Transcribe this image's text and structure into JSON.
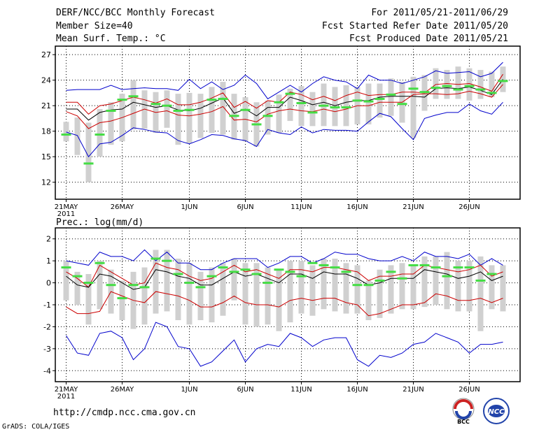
{
  "header": {
    "title": "DERF/NCC/BCC Monthly Forecast",
    "member_size": "Member Size=40",
    "variable": "Mean Surf. Temp.: °C",
    "forecast_range": "For 2011/05/21-2011/06/29",
    "fcst_started": "Fcst Started Refer Date 2011/05/20",
    "fcst_produced": "Fcst Produced Date 2011/05/21"
  },
  "footer": {
    "url": "http://cmdp.ncc.cma.gov.cn",
    "grads_credit": "GrADS: COLA/IGES",
    "logo_bcc": "BCC",
    "logo_ncc": "NCC"
  },
  "colors": {
    "max_min": "#0000cc",
    "spread": "#cc0000",
    "ensemble_mean": "#000000",
    "box": "#d0d0d0",
    "obs_marker": "#44dd44"
  },
  "chart_data": [
    {
      "type": "line",
      "id": "temperature",
      "title": "",
      "ylabel": "",
      "ylim": [
        10,
        28
      ],
      "yticks": [
        12,
        15,
        18,
        21,
        24,
        27
      ],
      "x_tick_labels": [
        "21MAY",
        "26MAY",
        "1JUN",
        "6JUN",
        "11JUN",
        "16JUN",
        "21JUN",
        "26JUN"
      ],
      "x_tick_days": [
        0,
        5,
        11,
        16,
        21,
        26,
        31,
        36
      ],
      "year_label": "2011",
      "days": 40,
      "series": [
        {
          "name": "max",
          "color": "#0000cc",
          "values": [
            22.8,
            22.9,
            22.9,
            22.9,
            23.4,
            22.9,
            23.0,
            23.1,
            23.0,
            23.0,
            22.8,
            24.1,
            23.0,
            23.8,
            22.9,
            23.4,
            24.6,
            23.6,
            21.8,
            22.6,
            23.4,
            22.6,
            23.6,
            24.4,
            24.0,
            23.8,
            23.0,
            24.6,
            24.0,
            24.0,
            23.6,
            24.0,
            24.4,
            25.1,
            24.8,
            24.9,
            25.0,
            24.4,
            24.8,
            26.1
          ]
        },
        {
          "name": "upper_spread",
          "color": "#cc0000",
          "values": [
            21.4,
            21.4,
            20.0,
            21.0,
            21.2,
            21.6,
            22.0,
            21.7,
            21.3,
            21.8,
            21.1,
            21.1,
            21.4,
            21.9,
            22.5,
            20.8,
            21.5,
            20.7,
            21.6,
            21.4,
            22.6,
            22.3,
            21.7,
            22.1,
            21.6,
            22.2,
            22.6,
            22.2,
            22.3,
            22.3,
            22.6,
            22.6,
            22.5,
            23.5,
            23.6,
            23.5,
            23.6,
            23.2,
            22.7,
            24.7
          ]
        },
        {
          "name": "ensemble_mean",
          "color": "#000000",
          "values": [
            20.6,
            20.6,
            19.3,
            20.2,
            20.5,
            20.6,
            21.4,
            21.1,
            20.8,
            21.0,
            20.5,
            20.4,
            20.7,
            21.3,
            21.9,
            20.1,
            20.6,
            19.8,
            20.8,
            20.8,
            22.0,
            21.6,
            21.1,
            21.4,
            21.0,
            21.4,
            21.6,
            21.6,
            22.0,
            22.1,
            22.1,
            22.1,
            22.0,
            23.0,
            23.1,
            23.0,
            23.2,
            22.8,
            22.3,
            24.1
          ]
        },
        {
          "name": "lower_spread",
          "color": "#cc0000",
          "values": [
            20.3,
            19.8,
            18.3,
            19.0,
            19.2,
            19.6,
            20.1,
            20.6,
            20.2,
            20.4,
            19.9,
            19.8,
            20.0,
            20.3,
            20.9,
            19.3,
            19.4,
            19.1,
            20.0,
            20.4,
            20.6,
            20.4,
            20.3,
            20.6,
            20.3,
            20.6,
            21.0,
            21.0,
            21.4,
            21.4,
            21.4,
            22.3,
            22.4,
            22.4,
            22.3,
            22.4,
            22.7,
            22.4,
            22.0,
            23.5
          ]
        },
        {
          "name": "min",
          "color": "#0000cc",
          "values": [
            17.9,
            17.5,
            15.0,
            16.5,
            16.7,
            17.5,
            18.4,
            18.2,
            17.9,
            17.8,
            16.9,
            16.5,
            17.0,
            17.6,
            17.5,
            17.1,
            16.9,
            16.2,
            18.2,
            17.8,
            17.6,
            18.5,
            17.8,
            18.2,
            18.1,
            18.1,
            18.0,
            19.1,
            20.1,
            19.7,
            18.3,
            17.0,
            19.5,
            19.9,
            20.2,
            20.2,
            21.2,
            20.4,
            20.0,
            21.4
          ]
        }
      ],
      "boxes": [
        [
          16.8,
          19.1
        ],
        [
          15.2,
          19.6
        ],
        [
          12.0,
          19.0
        ],
        [
          15.0,
          20.6
        ],
        [
          16.4,
          21.4
        ],
        [
          16.8,
          22.4
        ],
        [
          18.2,
          24.0
        ],
        [
          18.3,
          22.8
        ],
        [
          17.8,
          22.6
        ],
        [
          18.4,
          22.8
        ],
        [
          16.4,
          22.4
        ],
        [
          16.6,
          22.5
        ],
        [
          17.2,
          22.4
        ],
        [
          17.8,
          23.2
        ],
        [
          17.6,
          23.8
        ],
        [
          17.0,
          22.4
        ],
        [
          16.8,
          22.0
        ],
        [
          16.2,
          21.4
        ],
        [
          17.6,
          21.6
        ],
        [
          17.8,
          22.3
        ],
        [
          19.2,
          23.0
        ],
        [
          18.6,
          23.3
        ],
        [
          18.6,
          22.6
        ],
        [
          18.6,
          23.6
        ],
        [
          18.6,
          23.2
        ],
        [
          18.6,
          23.4
        ],
        [
          18.8,
          23.2
        ],
        [
          18.8,
          23.6
        ],
        [
          19.6,
          23.6
        ],
        [
          19.8,
          24.2
        ],
        [
          19.0,
          23.8
        ],
        [
          17.2,
          24.4
        ],
        [
          20.4,
          24.6
        ],
        [
          21.8,
          25.4
        ],
        [
          21.8,
          25.2
        ],
        [
          21.8,
          25.6
        ],
        [
          21.6,
          25.4
        ],
        [
          21.8,
          25.2
        ],
        [
          22.0,
          25.0
        ],
        [
          22.6,
          25.6
        ]
      ],
      "observed": [
        17.6,
        null,
        14.2,
        17.6,
        20.4,
        21.7,
        22.1,
        null,
        21.2,
        21.0,
        20.4,
        20.5,
        null,
        21.7,
        21.8,
        19.8,
        20.5,
        18.8,
        19.8,
        21.4,
        22.4,
        21.3,
        20.2,
        21.0,
        20.8,
        20.8,
        21.6,
        21.5,
        21.8,
        22.3,
        21.2,
        23.0,
        22.6,
        23.1,
        23.3,
        22.9,
        23.3,
        22.9,
        22.5,
        23.9
      ]
    },
    {
      "type": "line",
      "id": "precipitation",
      "title": "Prec.: log(mm/d)",
      "ylabel": "",
      "ylim": [
        -4.5,
        2.5
      ],
      "yticks": [
        -4,
        -3,
        -2,
        -1,
        0,
        1,
        2
      ],
      "x_tick_labels": [
        "21MAY",
        "26MAY",
        "1JUN",
        "6JUN",
        "11JUN",
        "16JUN",
        "21JUN",
        "26JUN"
      ],
      "x_tick_days": [
        0,
        5,
        11,
        16,
        21,
        26,
        31,
        36
      ],
      "year_label": "2011",
      "days": 40,
      "series": [
        {
          "name": "max",
          "color": "#0000cc",
          "values": [
            1.0,
            0.9,
            0.8,
            1.4,
            1.2,
            1.2,
            1.0,
            1.5,
            1.0,
            1.4,
            0.9,
            0.9,
            0.6,
            0.6,
            0.9,
            1.1,
            1.1,
            1.1,
            0.7,
            0.9,
            1.2,
            1.2,
            0.9,
            1.1,
            1.4,
            1.3,
            1.3,
            1.1,
            1.0,
            1.0,
            1.2,
            1.0,
            1.4,
            1.2,
            1.2,
            1.1,
            1.3,
            0.8,
            1.1,
            0.8
          ]
        },
        {
          "name": "upper_spread",
          "color": "#cc0000",
          "values": [
            0.5,
            0.2,
            -0.2,
            0.8,
            0.5,
            0.2,
            -0.1,
            0.0,
            0.9,
            0.7,
            0.6,
            0.3,
            0.1,
            0.2,
            0.5,
            0.8,
            0.5,
            0.6,
            0.4,
            0.2,
            0.6,
            0.6,
            0.5,
            0.7,
            0.7,
            0.6,
            0.5,
            0.1,
            0.3,
            0.3,
            0.4,
            0.4,
            0.8,
            0.7,
            0.6,
            0.5,
            0.6,
            0.8,
            0.3,
            0.5
          ]
        },
        {
          "name": "ensemble_mean",
          "color": "#000000",
          "values": [
            0.3,
            -0.1,
            -0.2,
            0.4,
            0.3,
            0.0,
            -0.3,
            -0.2,
            0.6,
            0.5,
            0.3,
            0.2,
            -0.1,
            -0.1,
            0.2,
            0.5,
            0.3,
            0.4,
            0.2,
            0.0,
            0.4,
            0.4,
            0.2,
            0.5,
            0.4,
            0.4,
            0.2,
            -0.1,
            0.0,
            0.2,
            0.2,
            0.2,
            0.6,
            0.5,
            0.4,
            0.2,
            0.3,
            0.5,
            0.1,
            0.3
          ]
        },
        {
          "name": "lower_spread",
          "color": "#cc0000",
          "values": [
            -1.1,
            -1.4,
            -1.4,
            -1.3,
            -0.4,
            -0.6,
            -0.8,
            -0.9,
            -0.4,
            -0.5,
            -0.6,
            -0.8,
            -1.1,
            -1.1,
            -0.9,
            -0.6,
            -0.9,
            -1.0,
            -1.0,
            -1.1,
            -0.8,
            -0.7,
            -0.8,
            -0.7,
            -0.7,
            -0.9,
            -1.0,
            -1.5,
            -1.4,
            -1.2,
            -1.0,
            -1.0,
            -0.9,
            -0.5,
            -0.6,
            -0.8,
            -0.8,
            -0.7,
            -0.9,
            -0.7
          ]
        },
        {
          "name": "min",
          "color": "#0000cc",
          "values": [
            -2.4,
            -3.2,
            -3.3,
            -2.3,
            -2.2,
            -2.5,
            -3.5,
            -3.0,
            -1.8,
            -2.0,
            -2.9,
            -3.0,
            -3.8,
            -3.6,
            -3.1,
            -2.6,
            -3.6,
            -3.0,
            -2.8,
            -2.9,
            -2.3,
            -2.5,
            -2.9,
            -2.6,
            -2.5,
            -2.5,
            -3.5,
            -3.8,
            -3.3,
            -3.4,
            -3.2,
            -2.8,
            -2.7,
            -2.3,
            -2.5,
            -2.7,
            -3.2,
            -2.8,
            -2.8,
            -2.7
          ]
        }
      ],
      "boxes": [
        [
          -0.8,
          1.0
        ],
        [
          -1.0,
          0.5
        ],
        [
          -1.9,
          0.4
        ],
        [
          -1.2,
          1.0
        ],
        [
          -1.4,
          0.6
        ],
        [
          -1.7,
          0.1
        ],
        [
          -2.1,
          0.5
        ],
        [
          -1.9,
          0.7
        ],
        [
          -1.4,
          1.5
        ],
        [
          -1.3,
          1.5
        ],
        [
          -1.7,
          1.1
        ],
        [
          -1.9,
          0.9
        ],
        [
          -1.7,
          0.5
        ],
        [
          -1.8,
          0.7
        ],
        [
          -1.5,
          0.9
        ],
        [
          -0.8,
          1.1
        ],
        [
          -1.9,
          0.9
        ],
        [
          -2.0,
          0.9
        ],
        [
          -1.9,
          0.7
        ],
        [
          -2.2,
          0.6
        ],
        [
          -1.8,
          1.0
        ],
        [
          -1.4,
          1.0
        ],
        [
          -1.5,
          0.8
        ],
        [
          -1.2,
          1.1
        ],
        [
          -1.3,
          1.1
        ],
        [
          -1.4,
          0.9
        ],
        [
          -1.4,
          0.8
        ],
        [
          -1.7,
          0.1
        ],
        [
          -1.6,
          0.6
        ],
        [
          -1.4,
          0.8
        ],
        [
          -1.2,
          0.9
        ],
        [
          -1.2,
          0.8
        ],
        [
          -1.1,
          1.2
        ],
        [
          -1.0,
          1.2
        ],
        [
          -1.2,
          1.4
        ],
        [
          -1.3,
          1.0
        ],
        [
          -1.3,
          1.0
        ],
        [
          -2.2,
          1.2
        ],
        [
          -1.2,
          0.8
        ],
        [
          -1.3,
          0.8
        ]
      ],
      "observed": [
        0.7,
        0.3,
        0.0,
        0.9,
        -0.1,
        -0.7,
        -0.1,
        -0.2,
        1.1,
        1.0,
        0.4,
        0.0,
        -0.2,
        0.3,
        0.7,
        0.5,
        0.6,
        0.4,
        0.0,
        0.6,
        0.5,
        0.3,
        0.9,
        0.8,
        0.7,
        0.5,
        -0.1,
        -0.1,
        0.1,
        0.5,
        0.2,
        0.8,
        0.8,
        0.7,
        0.3,
        0.7,
        0.7,
        0.1,
        0.4,
        null
      ]
    }
  ]
}
